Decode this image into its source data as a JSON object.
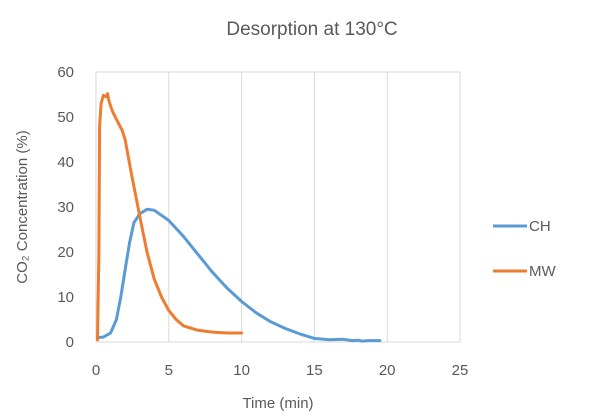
{
  "chart_data": {
    "type": "line",
    "title": "Desorption at 130°C",
    "xlabel": "Time (min)",
    "ylabel": "CO₂ Concentration (%)",
    "xlim": [
      0,
      25
    ],
    "ylim": [
      0,
      60
    ],
    "x_ticks": [
      0,
      5,
      10,
      15,
      20,
      25
    ],
    "y_ticks": [
      0,
      10,
      20,
      30,
      40,
      50,
      60
    ],
    "grid": "vertical",
    "legend_position": "right",
    "series": [
      {
        "name": "CH",
        "color": "#5b9bd5",
        "points": [
          [
            0.1,
            1.0
          ],
          [
            0.5,
            1.1
          ],
          [
            1.0,
            2.0
          ],
          [
            1.4,
            5.0
          ],
          [
            1.7,
            10.0
          ],
          [
            2.0,
            16.0
          ],
          [
            2.3,
            22.0
          ],
          [
            2.6,
            26.5
          ],
          [
            3.0,
            28.5
          ],
          [
            3.5,
            29.5
          ],
          [
            4.0,
            29.3
          ],
          [
            5.0,
            27.0
          ],
          [
            6.0,
            23.5
          ],
          [
            7.0,
            19.5
          ],
          [
            8.0,
            15.5
          ],
          [
            9.0,
            12.0
          ],
          [
            10.0,
            9.0
          ],
          [
            11.0,
            6.5
          ],
          [
            12.0,
            4.5
          ],
          [
            13.0,
            3.0
          ],
          [
            14.0,
            1.8
          ],
          [
            15.0,
            0.8
          ],
          [
            16.0,
            0.5
          ],
          [
            17.0,
            0.6
          ],
          [
            17.6,
            0.3
          ],
          [
            18.0,
            0.4
          ],
          [
            18.3,
            0.2
          ],
          [
            18.7,
            0.3
          ],
          [
            19.5,
            0.3
          ]
        ]
      },
      {
        "name": "MW",
        "color": "#ed7d31",
        "points": [
          [
            0.1,
            0.5
          ],
          [
            0.2,
            20.0
          ],
          [
            0.25,
            48.0
          ],
          [
            0.35,
            53.0
          ],
          [
            0.5,
            54.8
          ],
          [
            0.7,
            54.5
          ],
          [
            0.8,
            55.2
          ],
          [
            0.9,
            53.5
          ],
          [
            1.1,
            51.5
          ],
          [
            1.4,
            49.5
          ],
          [
            1.8,
            47.0
          ],
          [
            2.0,
            45.0
          ],
          [
            2.4,
            38.0
          ],
          [
            3.0,
            28.0
          ],
          [
            3.5,
            20.0
          ],
          [
            4.0,
            14.0
          ],
          [
            4.5,
            10.0
          ],
          [
            5.0,
            7.0
          ],
          [
            5.5,
            5.0
          ],
          [
            6.0,
            3.6
          ],
          [
            7.0,
            2.6
          ],
          [
            8.0,
            2.2
          ],
          [
            9.0,
            2.0
          ],
          [
            10.0,
            2.0
          ]
        ]
      }
    ]
  }
}
